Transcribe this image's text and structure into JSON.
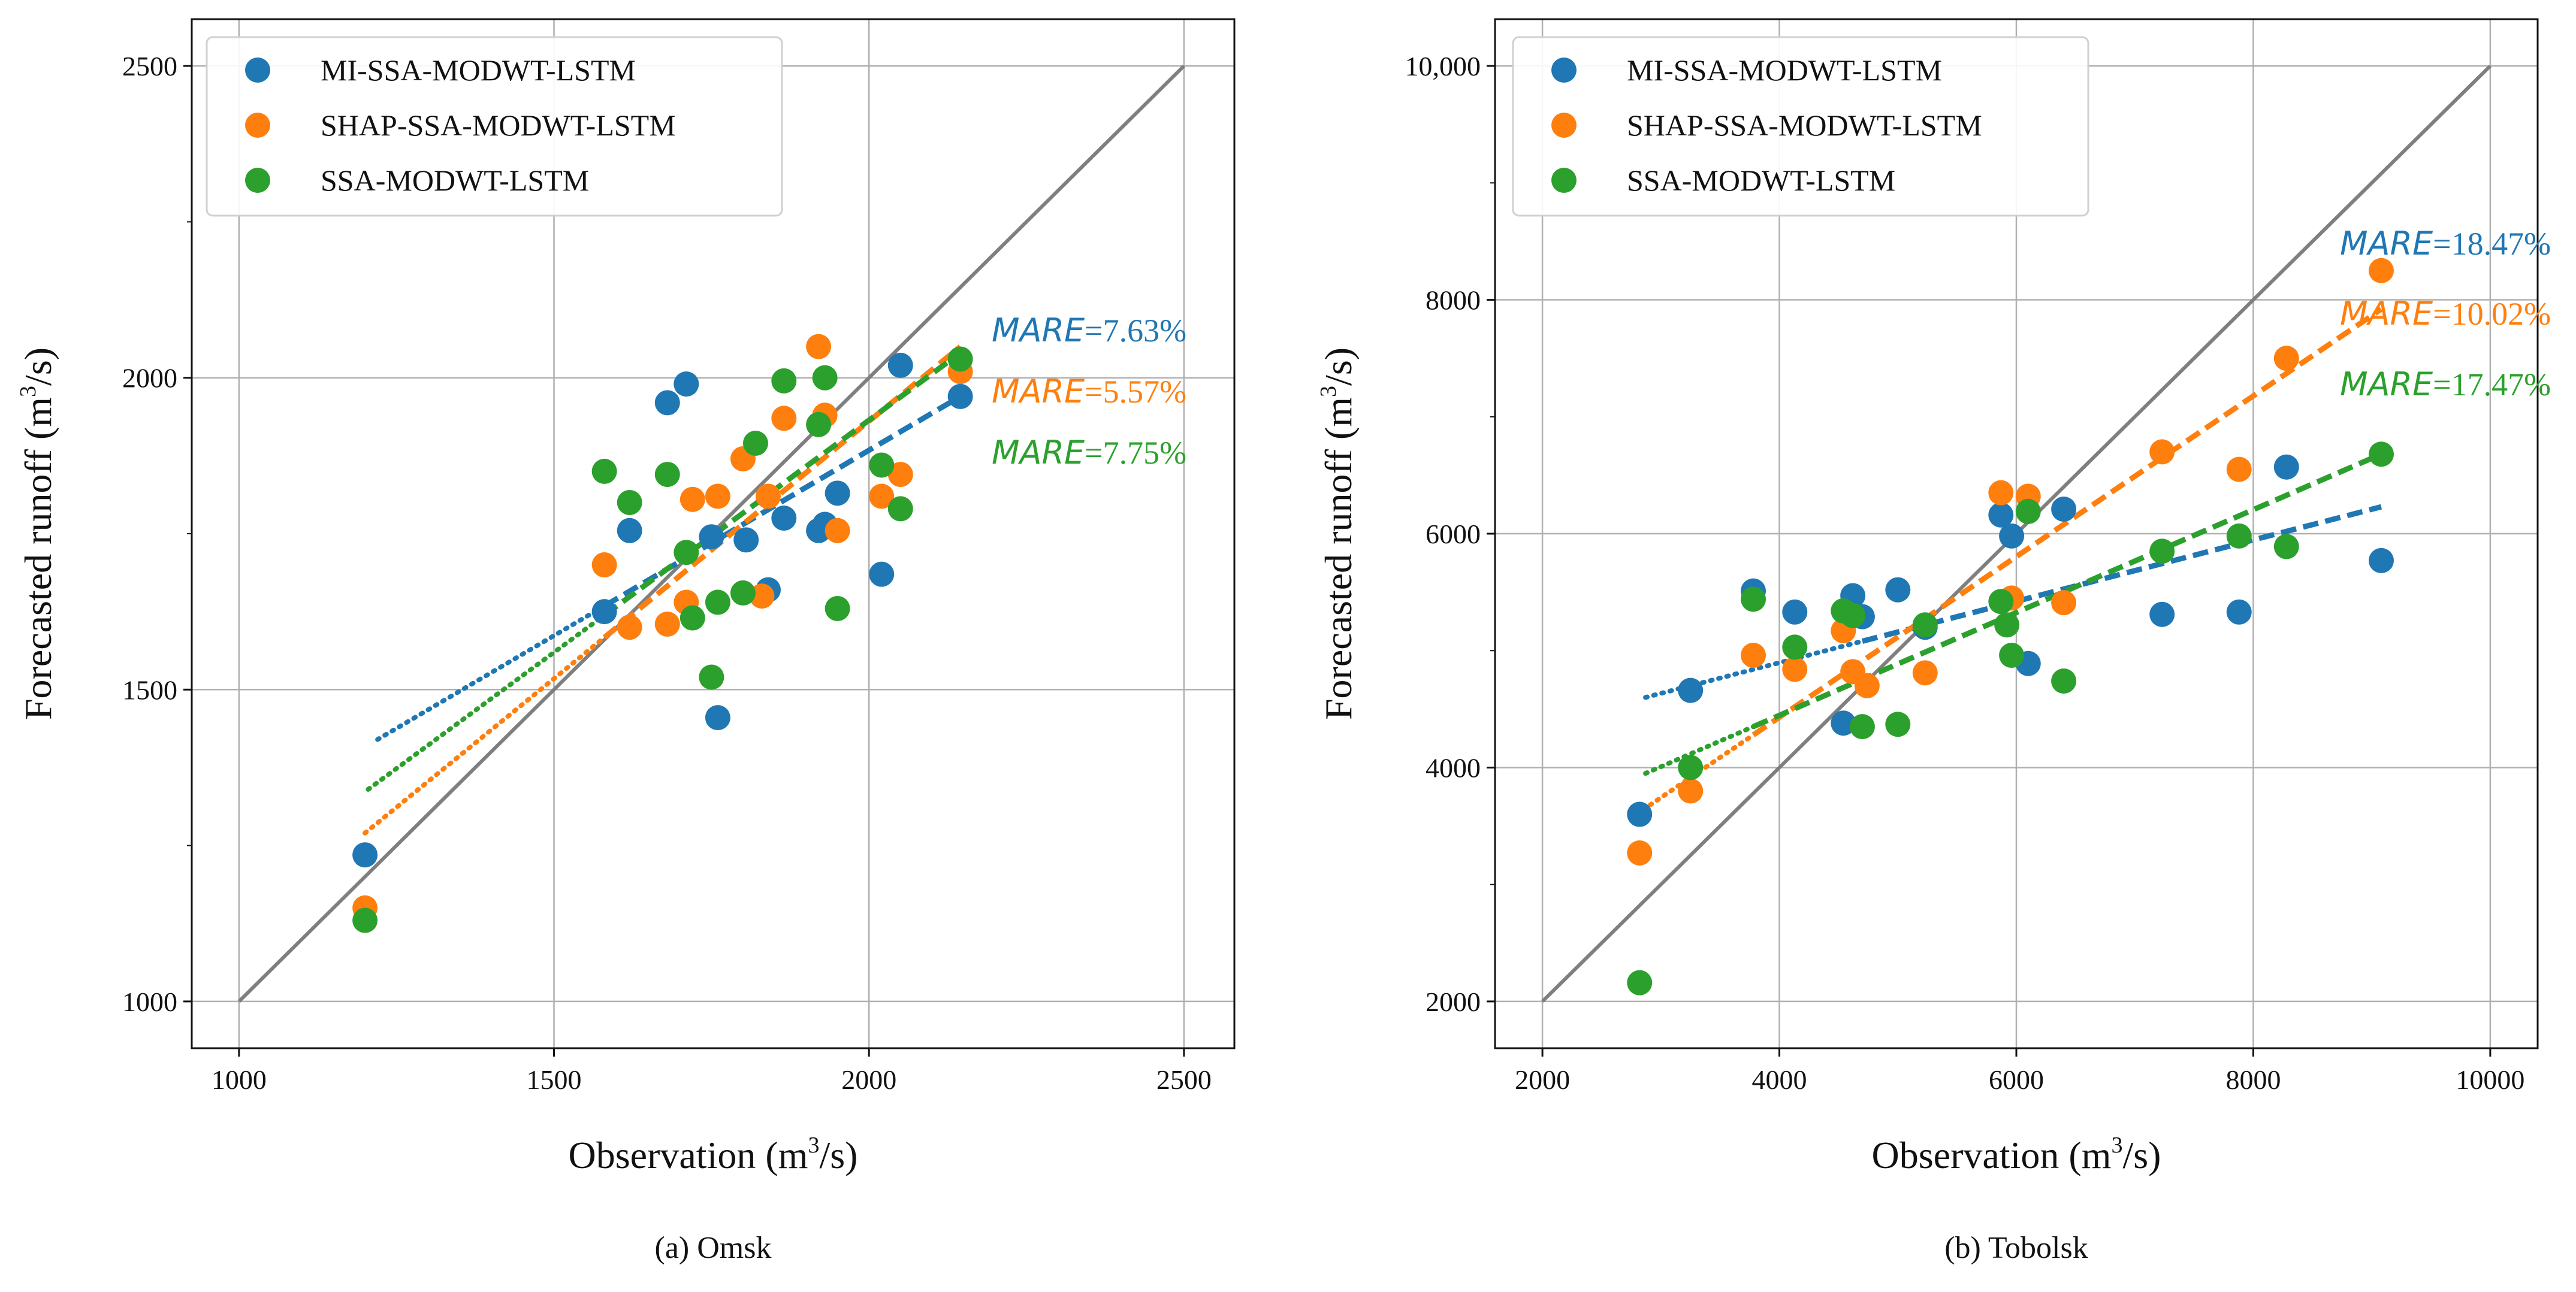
{
  "chart_data": [
    {
      "type": "scatter",
      "title": "",
      "caption": "(a) Omsk",
      "xlabel_main": "Observation (m",
      "xlabel_sup": "3",
      "xlabel_tail": "/s)",
      "ylabel_main": "Forecasted runoff (m",
      "ylabel_sup": "3",
      "ylabel_tail": "/s)",
      "xlim": [
        925,
        2580
      ],
      "ylim": [
        925,
        2575
      ],
      "xticks": [
        1000,
        1500,
        2000,
        2500
      ],
      "xtick_labels": [
        "1000",
        "1500",
        "2000",
        "2500"
      ],
      "yticks": [
        1000,
        1500,
        2000,
        2500
      ],
      "ytick_labels": [
        "1000",
        "1500",
        "2000",
        "2500"
      ],
      "y_minor_ticks": [
        1250,
        1750,
        2250
      ],
      "grid": true,
      "legend_position": "upper-left",
      "reference_line": {
        "x": [
          1000,
          2500
        ],
        "y": [
          1000,
          2500
        ],
        "color": "#7f7f7f"
      },
      "series": [
        {
          "name": "MI-SSA-MODWT-LSTM",
          "color": "#1f77b4",
          "mare_label": "MARE",
          "mare_value": "=7.63%",
          "x": [
            1200,
            1580,
            1620,
            1680,
            1710,
            1750,
            1760,
            1805,
            1840,
            1865,
            1920,
            1930,
            1950,
            2020,
            2050,
            2145
          ],
          "y": [
            1235,
            1625,
            1755,
            1960,
            1990,
            1745,
            1455,
            1740,
            1660,
            1775,
            1755,
            1765,
            1815,
            1685,
            2020,
            1970
          ],
          "fit": {
            "x": [
              1220,
              2145
            ],
            "y": [
              1420,
              1970
            ],
            "solid_from_x": 1580
          }
        },
        {
          "name": "SHAP-SSA-MODWT-LSTM",
          "color": "#ff7f0e",
          "mare_label": "MARE",
          "mare_value": "=5.57%",
          "x": [
            1200,
            1580,
            1620,
            1680,
            1710,
            1720,
            1760,
            1800,
            1830,
            1840,
            1865,
            1920,
            1930,
            1950,
            2020,
            2050,
            2145
          ],
          "y": [
            1150,
            1700,
            1600,
            1605,
            1640,
            1805,
            1810,
            1870,
            1650,
            1810,
            1935,
            2050,
            1940,
            1755,
            1810,
            1845,
            2010
          ],
          "fit": {
            "x": [
              1200,
              2145
            ],
            "y": [
              1270,
              2050
            ],
            "solid_from_x": 1580
          }
        },
        {
          "name": "SSA-MODWT-LSTM",
          "color": "#2ca02c",
          "mare_label": "MARE",
          "mare_value": "=7.75%",
          "x": [
            1200,
            1580,
            1620,
            1680,
            1710,
            1720,
            1750,
            1760,
            1800,
            1820,
            1865,
            1920,
            1930,
            1950,
            2020,
            2050,
            2145
          ],
          "y": [
            1130,
            1850,
            1800,
            1845,
            1720,
            1615,
            1520,
            1640,
            1655,
            1895,
            1995,
            1925,
            2000,
            1630,
            1860,
            1790,
            2030
          ],
          "fit": {
            "x": [
              1205,
              2145
            ],
            "y": [
              1340,
              2040
            ],
            "solid_from_x": 1580
          }
        }
      ]
    },
    {
      "type": "scatter",
      "title": "",
      "caption": "(b) Tobolsk",
      "xlabel_main": "Observation (m",
      "xlabel_sup": "3",
      "xlabel_tail": "/s)",
      "ylabel_main": "Forecasted runoff (m",
      "ylabel_sup": "3",
      "ylabel_tail": "/s)",
      "xlim": [
        1600,
        10400
      ],
      "ylim": [
        1600,
        10400
      ],
      "xticks": [
        2000,
        4000,
        6000,
        8000,
        10000
      ],
      "xtick_labels": [
        "2000",
        "4000",
        "6000",
        "8000",
        "10000"
      ],
      "yticks": [
        2000,
        4000,
        6000,
        8000,
        10000
      ],
      "ytick_labels": [
        "2000",
        "4000",
        "6000",
        "8000",
        "10,000"
      ],
      "y_minor_ticks": [
        3000,
        5000,
        7000,
        9000
      ],
      "grid": true,
      "legend_position": "upper-left",
      "reference_line": {
        "x": [
          2000,
          10000
        ],
        "y": [
          2000,
          10000
        ],
        "color": "#7f7f7f"
      },
      "series": [
        {
          "name": "MI-SSA-MODWT-LSTM",
          "color": "#1f77b4",
          "mare_label": "MARE",
          "mare_value": "=18.47%",
          "x": [
            2820,
            3250,
            3780,
            4130,
            4540,
            4620,
            4700,
            5000,
            5230,
            5870,
            5960,
            6100,
            6400,
            7230,
            7880,
            8280,
            9080
          ],
          "y": [
            3600,
            4660,
            5510,
            5330,
            4380,
            5470,
            5290,
            5520,
            5200,
            6160,
            5980,
            4890,
            6210,
            5310,
            5330,
            6570,
            5770
          ],
          "fit": {
            "x": [
              2870,
              9080
            ],
            "y": [
              4600,
              6230
            ],
            "solid_from_x": 4700
          }
        },
        {
          "name": "SHAP-SSA-MODWT-LSTM",
          "color": "#ff7f0e",
          "mare_label": "MARE",
          "mare_value": "=10.02%",
          "x": [
            2820,
            3250,
            3780,
            4130,
            4540,
            4620,
            4740,
            5230,
            5870,
            5960,
            6100,
            6400,
            7230,
            7880,
            8280,
            9080
          ],
          "y": [
            3270,
            3800,
            4960,
            4840,
            5170,
            4820,
            4700,
            4810,
            6350,
            5450,
            6320,
            5410,
            6700,
            6550,
            7500,
            8250
          ],
          "fit": {
            "x": [
              2850,
              9080
            ],
            "y": [
              3640,
              7920
            ],
            "solid_from_x": 3780
          }
        },
        {
          "name": "SSA-MODWT-LSTM",
          "color": "#2ca02c",
          "mare_label": "MARE",
          "mare_value": "=17.47%",
          "x": [
            2820,
            3250,
            3780,
            4130,
            4540,
            4620,
            4700,
            5000,
            5230,
            5870,
            5920,
            5960,
            6100,
            6400,
            7230,
            7880,
            8280,
            9080
          ],
          "y": [
            2160,
            4000,
            5440,
            5030,
            5340,
            5300,
            4350,
            4370,
            5220,
            5420,
            5220,
            4960,
            6190,
            4740,
            5850,
            5980,
            5890,
            6680
          ],
          "fit": {
            "x": [
              2870,
              9080
            ],
            "y": [
              3950,
              6680
            ],
            "solid_from_x": 3780
          }
        }
      ]
    }
  ]
}
